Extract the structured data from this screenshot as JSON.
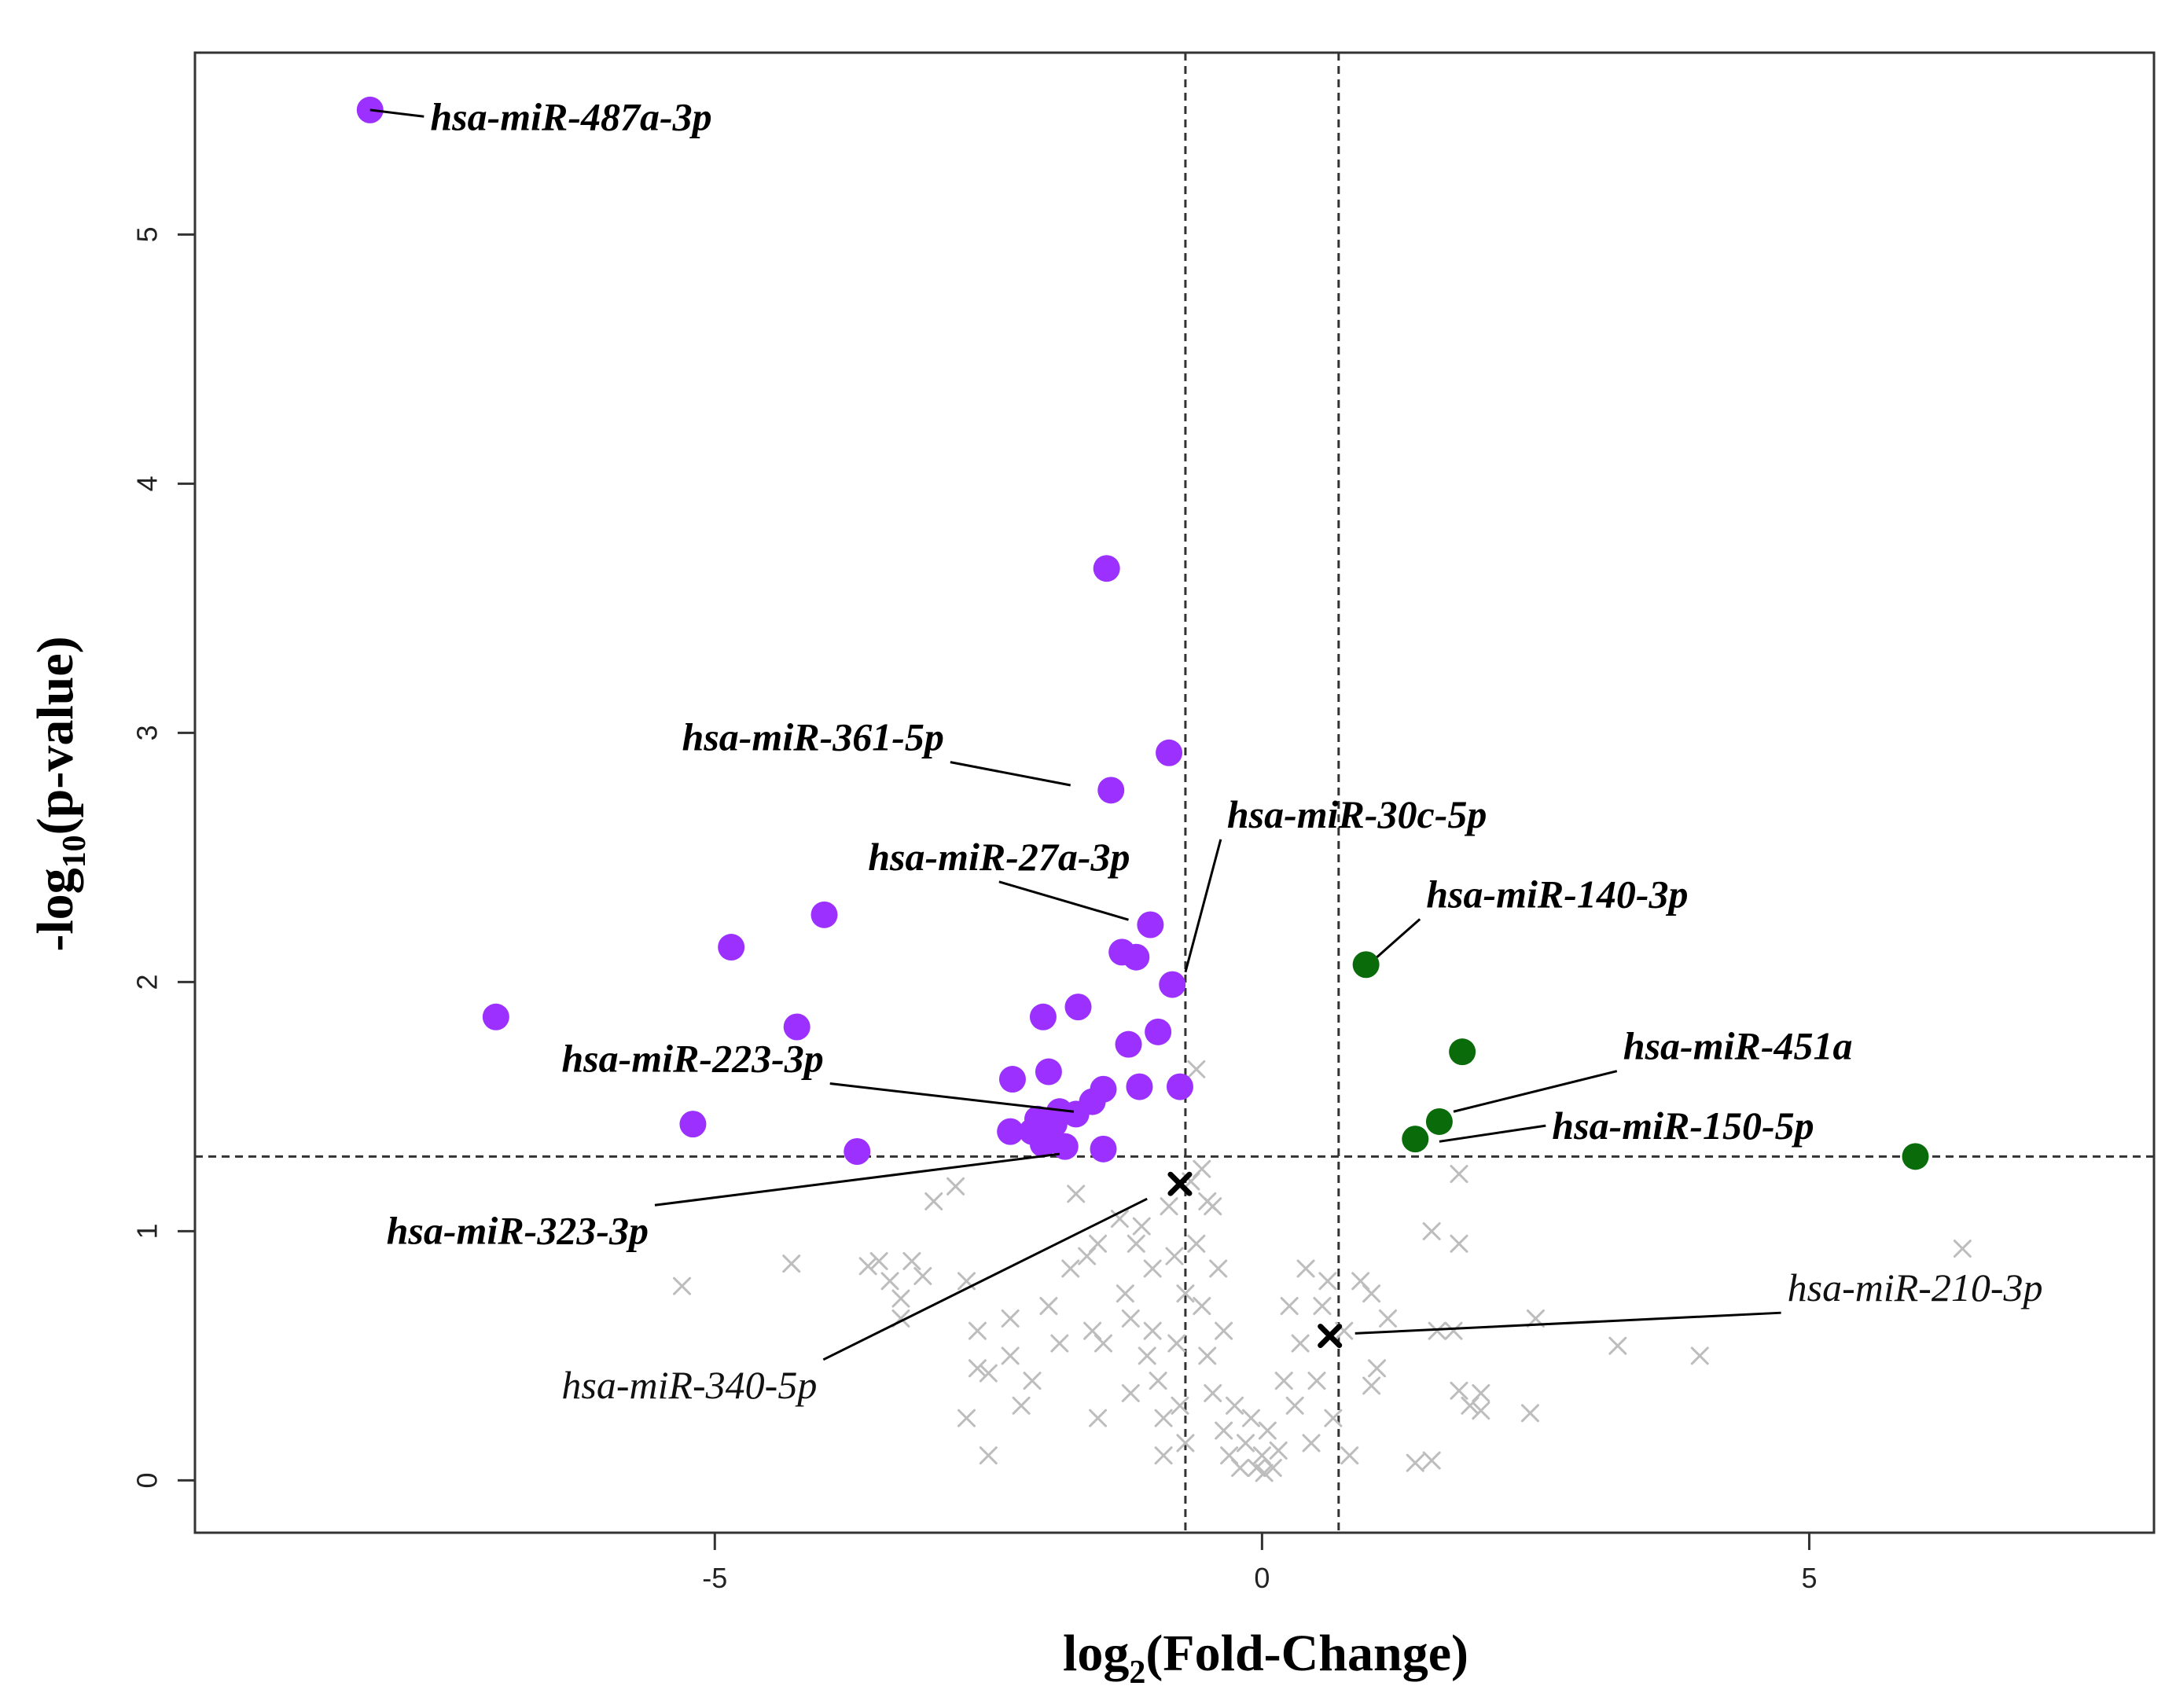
{
  "chart_data": {
    "type": "scatter",
    "title": "",
    "xlabel": {
      "prefix": "log",
      "sub": "2",
      "suffix": "(Fold-Change)"
    },
    "ylabel": {
      "prefix": "-log",
      "sub": "10",
      "suffix": "(p-value)"
    },
    "xlim": [
      -9.75,
      8.15
    ],
    "ylim": [
      -0.21,
      5.73
    ],
    "x_ticks": [
      -5,
      0,
      5
    ],
    "x_tick_labels": [
      "-5",
      "0",
      "5"
    ],
    "y_ticks": [
      0,
      1,
      2,
      3,
      4,
      5
    ],
    "y_tick_labels": [
      "0",
      "1",
      "2",
      "3",
      "4",
      "5"
    ],
    "thresholds": {
      "x": [
        -0.7,
        0.7
      ],
      "y": 1.3
    },
    "colors": {
      "down": "#9b30ff",
      "up": "#0a6b0a",
      "ns": "#bdbdbd",
      "highlight": "#000000",
      "lines": "#333333"
    },
    "series": [
      {
        "name": "down-regulated",
        "points": [
          [
            -8.15,
            5.5
          ],
          [
            -1.42,
            3.66
          ],
          [
            -0.85,
            2.92
          ],
          [
            -1.38,
            2.77
          ],
          [
            -4.0,
            2.27
          ],
          [
            -1.02,
            2.23
          ],
          [
            -4.85,
            2.14
          ],
          [
            -1.28,
            2.12
          ],
          [
            -1.15,
            2.1
          ],
          [
            -0.82,
            1.99
          ],
          [
            -1.68,
            1.9
          ],
          [
            -2.0,
            1.86
          ],
          [
            -7.0,
            1.86
          ],
          [
            -4.25,
            1.82
          ],
          [
            -0.95,
            1.8
          ],
          [
            -1.22,
            1.75
          ],
          [
            -1.12,
            1.58
          ],
          [
            -0.75,
            1.58
          ],
          [
            -1.45,
            1.57
          ],
          [
            -1.95,
            1.64
          ],
          [
            -2.28,
            1.61
          ],
          [
            -1.55,
            1.52
          ],
          [
            -1.7,
            1.47
          ],
          [
            -1.85,
            1.48
          ],
          [
            -2.05,
            1.45
          ],
          [
            -2.1,
            1.4
          ],
          [
            -2.3,
            1.4
          ],
          [
            -1.95,
            1.38
          ],
          [
            -2.0,
            1.35
          ],
          [
            -1.8,
            1.34
          ],
          [
            -1.45,
            1.33
          ],
          [
            -5.2,
            1.43
          ],
          [
            -3.7,
            1.32
          ],
          [
            -1.9,
            1.43
          ]
        ]
      },
      {
        "name": "up-regulated",
        "points": [
          [
            0.95,
            2.07
          ],
          [
            1.83,
            1.72
          ],
          [
            1.62,
            1.44
          ],
          [
            1.4,
            1.37
          ],
          [
            5.97,
            1.3
          ]
        ]
      },
      {
        "name": "not-significant",
        "points": [
          [
            -5.3,
            0.78
          ],
          [
            -4.3,
            0.87
          ],
          [
            -3.6,
            0.86
          ],
          [
            -3.5,
            0.88
          ],
          [
            -3.4,
            0.8
          ],
          [
            -3.3,
            0.73
          ],
          [
            -3.2,
            0.88
          ],
          [
            -3.1,
            0.82
          ],
          [
            -3.3,
            0.65
          ],
          [
            -3.0,
            1.12
          ],
          [
            -2.8,
            1.18
          ],
          [
            -2.7,
            0.8
          ],
          [
            -2.6,
            0.6
          ],
          [
            -2.6,
            0.45
          ],
          [
            -2.5,
            0.43
          ],
          [
            -2.7,
            0.25
          ],
          [
            -2.5,
            0.1
          ],
          [
            -2.3,
            0.65
          ],
          [
            -2.3,
            0.5
          ],
          [
            -2.1,
            0.4
          ],
          [
            -2.2,
            0.3
          ],
          [
            -1.95,
            0.7
          ],
          [
            -1.85,
            0.55
          ],
          [
            -1.75,
            0.85
          ],
          [
            -1.7,
            1.15
          ],
          [
            -1.6,
            0.9
          ],
          [
            -1.55,
            0.6
          ],
          [
            -1.5,
            0.95
          ],
          [
            -1.45,
            0.55
          ],
          [
            -1.5,
            0.25
          ],
          [
            -1.3,
            1.05
          ],
          [
            -1.25,
            0.75
          ],
          [
            -1.2,
            0.65
          ],
          [
            -1.2,
            0.35
          ],
          [
            -1.15,
            0.95
          ],
          [
            -1.1,
            1.02
          ],
          [
            -1.05,
            0.5
          ],
          [
            -1.0,
            0.85
          ],
          [
            -1.0,
            0.6
          ],
          [
            -0.95,
            0.4
          ],
          [
            -0.9,
            0.25
          ],
          [
            -0.9,
            0.1
          ],
          [
            -0.85,
            1.1
          ],
          [
            -0.8,
            0.9
          ],
          [
            -0.78,
            0.55
          ],
          [
            -0.75,
            0.3
          ],
          [
            -0.7,
            0.15
          ],
          [
            -0.65,
            1.2
          ],
          [
            -0.6,
            0.95
          ],
          [
            -0.55,
            0.7
          ],
          [
            -0.5,
            0.5
          ],
          [
            -0.45,
            0.35
          ],
          [
            -0.45,
            1.1
          ],
          [
            -0.4,
            0.85
          ],
          [
            -0.35,
            0.6
          ],
          [
            -0.35,
            0.2
          ],
          [
            -0.3,
            0.1
          ],
          [
            -0.25,
            0.3
          ],
          [
            -0.2,
            0.05
          ],
          [
            -0.15,
            0.15
          ],
          [
            -0.1,
            0.25
          ],
          [
            -0.05,
            0.05
          ],
          [
            0.0,
            0.1
          ],
          [
            0.02,
            0.03
          ],
          [
            0.05,
            0.2
          ],
          [
            0.1,
            0.05
          ],
          [
            0.15,
            0.12
          ],
          [
            0.2,
            0.4
          ],
          [
            0.25,
            0.7
          ],
          [
            0.3,
            0.3
          ],
          [
            0.35,
            0.55
          ],
          [
            0.4,
            0.85
          ],
          [
            0.45,
            0.15
          ],
          [
            0.5,
            0.4
          ],
          [
            0.55,
            0.7
          ],
          [
            0.6,
            0.8
          ],
          [
            0.65,
            0.25
          ],
          [
            0.75,
            0.6
          ],
          [
            0.8,
            0.1
          ],
          [
            0.9,
            0.8
          ],
          [
            1.0,
            0.75
          ],
          [
            1.05,
            0.45
          ],
          [
            1.0,
            0.38
          ],
          [
            1.15,
            0.65
          ],
          [
            1.4,
            0.07
          ],
          [
            1.55,
            0.08
          ],
          [
            1.55,
            1.0
          ],
          [
            1.6,
            0.6
          ],
          [
            1.75,
            0.6
          ],
          [
            1.8,
            0.95
          ],
          [
            1.8,
            1.23
          ],
          [
            1.8,
            0.36
          ],
          [
            1.9,
            0.3
          ],
          [
            2.0,
            0.28
          ],
          [
            2.0,
            0.35
          ],
          [
            2.5,
            0.65
          ],
          [
            2.45,
            0.27
          ],
          [
            3.25,
            0.54
          ],
          [
            4.0,
            0.5
          ],
          [
            6.4,
            0.93
          ],
          [
            -0.6,
            1.65
          ],
          [
            -0.55,
            1.25
          ],
          [
            -0.5,
            1.12
          ],
          [
            -0.7,
            0.75
          ]
        ]
      },
      {
        "name": "highlighted",
        "points": [
          [
            -0.75,
            1.19
          ],
          [
            0.62,
            0.58
          ]
        ]
      }
    ],
    "annotations": [
      {
        "text": "hsa-miR-487a-3p",
        "bold": true,
        "point": [
          -8.15,
          5.5
        ],
        "label_at": [
          -7.6,
          5.42
        ]
      },
      {
        "text": "hsa-miR-361-5p",
        "bold": true,
        "point": [
          -1.75,
          2.79
        ],
        "label_at": [
          -5.3,
          2.93
        ]
      },
      {
        "text": "hsa-miR-30c-5p",
        "bold": true,
        "point": [
          -0.7,
          2.04
        ],
        "label_at": [
          -0.32,
          2.62
        ]
      },
      {
        "text": "hsa-miR-27a-3p",
        "bold": true,
        "point": [
          -1.22,
          2.25
        ],
        "label_at": [
          -3.6,
          2.45
        ]
      },
      {
        "text": "hsa-miR-140-3p",
        "bold": true,
        "point": [
          1.05,
          2.1
        ],
        "label_at": [
          1.5,
          2.3
        ]
      },
      {
        "text": "hsa-miR-223-3p",
        "bold": true,
        "point": [
          -1.72,
          1.48
        ],
        "label_at": [
          -6.4,
          1.64
        ]
      },
      {
        "text": "hsa-miR-451a",
        "bold": true,
        "point": [
          1.75,
          1.48
        ],
        "label_at": [
          3.3,
          1.69
        ]
      },
      {
        "text": "hsa-miR-150-5p",
        "bold": true,
        "point": [
          1.62,
          1.36
        ],
        "label_at": [
          2.65,
          1.37
        ]
      },
      {
        "text": "hsa-miR-323-3p",
        "bold": true,
        "point": [
          -1.85,
          1.31
        ],
        "label_at": [
          -8.0,
          0.95
        ]
      },
      {
        "text": "hsa-miR-340-5p",
        "bold": false,
        "point": [
          -1.05,
          1.13
        ],
        "label_at": [
          -6.4,
          0.33
        ]
      },
      {
        "text": "hsa-miR-210-3p",
        "bold": false,
        "point": [
          0.85,
          0.59
        ],
        "label_at": [
          4.8,
          0.72
        ]
      }
    ]
  }
}
